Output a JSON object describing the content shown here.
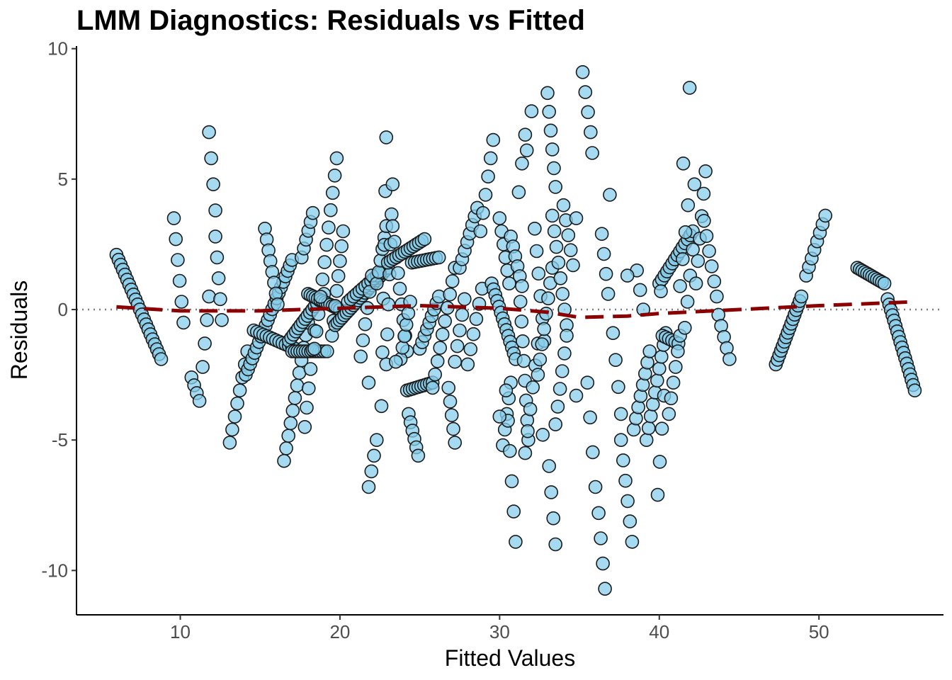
{
  "chart_data": {
    "type": "scatter",
    "title": "LMM Diagnostics: Residuals vs Fitted",
    "xlabel": "Fitted Values",
    "ylabel": "Residuals",
    "xlim": [
      3.5,
      57.8
    ],
    "ylim": [
      -11.7,
      10.1
    ],
    "xticks": [
      10,
      20,
      30,
      40,
      50
    ],
    "yticks": [
      -10,
      -5,
      0,
      5,
      10
    ],
    "xtick_labels": [
      "10",
      "20",
      "30",
      "40",
      "50"
    ],
    "ytick_labels": [
      "-10",
      "-5",
      "0",
      "5",
      "10"
    ],
    "grid": false,
    "reference_line": {
      "y": 0,
      "style": "dotted",
      "color": "#808080"
    },
    "point_style": {
      "fill": "#87CEEB",
      "stroke": "#1a1a1a",
      "opacity": 0.75
    },
    "smooth_line": {
      "style": "dashed",
      "color": "#8B0000",
      "x": [
        6,
        10,
        15,
        20,
        25,
        30,
        33,
        35,
        38,
        40,
        45,
        50,
        56
      ],
      "y": [
        0.1,
        -0.05,
        -0.05,
        0.05,
        0.15,
        0.05,
        -0.1,
        -0.3,
        -0.25,
        -0.15,
        0.0,
        0.15,
        0.3
      ]
    },
    "segments": [
      {
        "x0": 6.0,
        "y0": 2.1,
        "x1": 8.8,
        "y1": -1.9,
        "n": 22
      },
      {
        "x0": 9.6,
        "y0": 3.5,
        "x1": 10.2,
        "y1": -0.5,
        "n": 6
      },
      {
        "x0": 10.7,
        "y0": -2.6,
        "x1": 11.2,
        "y1": -3.5,
        "n": 4
      },
      {
        "x0": 11.4,
        "y0": -2.2,
        "x1": 11.8,
        "y1": 0.5,
        "n": 4
      },
      {
        "x0": 11.8,
        "y0": 6.8,
        "x1": 12.2,
        "y1": 3.8,
        "n": 4
      },
      {
        "x0": 12.2,
        "y0": 2.8,
        "x1": 12.6,
        "y1": -0.4,
        "n": 5
      },
      {
        "x0": 13.1,
        "y0": -5.1,
        "x1": 14.2,
        "y1": -1.6,
        "n": 8
      },
      {
        "x0": 14.1,
        "y0": -2.5,
        "x1": 17.0,
        "y1": 1.9,
        "n": 22
      },
      {
        "x0": 15.3,
        "y0": 3.1,
        "x1": 16.1,
        "y1": 0.2,
        "n": 8
      },
      {
        "x0": 14.6,
        "y0": -0.8,
        "x1": 17.2,
        "y1": -1.5,
        "n": 14
      },
      {
        "x0": 16.5,
        "y0": -5.8,
        "x1": 18.0,
        "y1": -0.5,
        "n": 12
      },
      {
        "x0": 16.8,
        "y0": -1.2,
        "x1": 19.0,
        "y1": 0.6,
        "n": 16
      },
      {
        "x0": 17.0,
        "y0": -1.6,
        "x1": 19.2,
        "y1": -1.6,
        "n": 14
      },
      {
        "x0": 17.6,
        "y0": 2.0,
        "x1": 18.3,
        "y1": 3.7,
        "n": 6
      },
      {
        "x0": 17.8,
        "y0": -4.5,
        "x1": 18.4,
        "y1": -0.8,
        "n": 6
      },
      {
        "x0": 18.0,
        "y0": 0.6,
        "x1": 20.0,
        "y1": 0.0,
        "n": 14
      },
      {
        "x0": 18.4,
        "y0": -1.5,
        "x1": 19.8,
        "y1": 5.8,
        "n": 12
      },
      {
        "x0": 19.5,
        "y0": -1.0,
        "x1": 20.2,
        "y1": 3.0,
        "n": 8
      },
      {
        "x0": 19.7,
        "y0": -0.6,
        "x1": 23.0,
        "y1": 1.6,
        "n": 24
      },
      {
        "x0": 20.5,
        "y0": 0.3,
        "x1": 22.5,
        "y1": 1.4,
        "n": 12
      },
      {
        "x0": 21.3,
        "y0": -1.8,
        "x1": 22.0,
        "y1": 1.3,
        "n": 6
      },
      {
        "x0": 21.8,
        "y0": -6.8,
        "x1": 22.3,
        "y1": -5.0,
        "n": 4
      },
      {
        "x0": 22.3,
        "y0": 1.0,
        "x1": 22.9,
        "y1": 3.2,
        "n": 6
      },
      {
        "x0": 22.6,
        "y0": -3.7,
        "x1": 22.9,
        "y1": 6.6,
        "n": 6
      },
      {
        "x0": 22.9,
        "y0": -2.1,
        "x1": 23.3,
        "y1": 4.8,
        "n": 7
      },
      {
        "x0": 23.3,
        "y0": 3.2,
        "x1": 24.2,
        "y1": -1.6,
        "n": 9
      },
      {
        "x0": 23.0,
        "y0": 1.8,
        "x1": 25.3,
        "y1": 2.7,
        "n": 14
      },
      {
        "x0": 24.2,
        "y0": -3.1,
        "x1": 25.8,
        "y1": -2.8,
        "n": 10
      },
      {
        "x0": 24.3,
        "y0": -4.0,
        "x1": 24.9,
        "y1": -5.6,
        "n": 6
      },
      {
        "x0": 24.5,
        "y0": 1.8,
        "x1": 26.2,
        "y1": 2.0,
        "n": 10
      },
      {
        "x0": 23.8,
        "y0": -1.9,
        "x1": 24.4,
        "y1": 0.3,
        "n": 6
      },
      {
        "x0": 25.0,
        "y0": -1.5,
        "x1": 26.2,
        "y1": 0.5,
        "n": 9
      },
      {
        "x0": 25.8,
        "y0": -3.0,
        "x1": 27.2,
        "y1": 1.6,
        "n": 10
      },
      {
        "x0": 26.8,
        "y0": -3.0,
        "x1": 27.2,
        "y1": -5.1,
        "n": 5
      },
      {
        "x0": 27.2,
        "y0": -2.0,
        "x1": 27.8,
        "y1": 0.4,
        "n": 5
      },
      {
        "x0": 27.5,
        "y0": 1.6,
        "x1": 28.6,
        "y1": 3.9,
        "n": 8
      },
      {
        "x0": 28.0,
        "y0": -2.1,
        "x1": 28.9,
        "y1": 0.8,
        "n": 6
      },
      {
        "x0": 28.8,
        "y0": 3.0,
        "x1": 29.6,
        "y1": 6.5,
        "n": 6
      },
      {
        "x0": 29.5,
        "y0": 1.0,
        "x1": 31.0,
        "y1": -1.9,
        "n": 14
      },
      {
        "x0": 30.0,
        "y0": 3.5,
        "x1": 30.6,
        "y1": 1.0,
        "n": 6
      },
      {
        "x0": 30.2,
        "y0": -5.2,
        "x1": 30.7,
        "y1": -2.8,
        "n": 5
      },
      {
        "x0": 30.4,
        "y0": -3.1,
        "x1": 31.0,
        "y1": -8.9,
        "n": 6
      },
      {
        "x0": 30.7,
        "y0": 2.8,
        "x1": 31.4,
        "y1": 0.9,
        "n": 6
      },
      {
        "x0": 31.2,
        "y0": 4.5,
        "x1": 31.6,
        "y1": 6.7,
        "n": 3
      },
      {
        "x0": 31.3,
        "y0": 0.3,
        "x1": 31.8,
        "y1": -5.0,
        "n": 8
      },
      {
        "x0": 31.7,
        "y0": 6.1,
        "x1": 32.0,
        "y1": 7.6,
        "n": 2
      },
      {
        "x0": 31.6,
        "y0": -5.5,
        "x1": 32.4,
        "y1": -1.3,
        "n": 6
      },
      {
        "x0": 32.2,
        "y0": 3.1,
        "x1": 32.8,
        "y1": -1.2,
        "n": 6
      },
      {
        "x0": 32.4,
        "y0": -2.5,
        "x1": 33.3,
        "y1": 1.6,
        "n": 8
      },
      {
        "x0": 33.0,
        "y0": 8.3,
        "x1": 33.5,
        "y1": 4.7,
        "n": 6
      },
      {
        "x0": 33.1,
        "y0": -6.0,
        "x1": 33.5,
        "y1": -9.0,
        "n": 4
      },
      {
        "x0": 33.3,
        "y0": 3.6,
        "x1": 34.2,
        "y1": -0.6,
        "n": 8
      },
      {
        "x0": 33.5,
        "y0": -4.4,
        "x1": 34.2,
        "y1": -1.0,
        "n": 6
      },
      {
        "x0": 34.0,
        "y0": 4.0,
        "x1": 34.6,
        "y1": 1.7,
        "n": 5
      },
      {
        "x0": 35.2,
        "y0": 9.1,
        "x1": 35.7,
        "y1": 6.8,
        "n": 4
      },
      {
        "x0": 35.5,
        "y0": -2.8,
        "x1": 36.0,
        "y1": -6.8,
        "n": 4
      },
      {
        "x0": 36.2,
        "y0": -7.8,
        "x1": 36.6,
        "y1": -10.7,
        "n": 4
      },
      {
        "x0": 36.4,
        "y0": 2.9,
        "x1": 36.8,
        "y1": 0.6,
        "n": 4
      },
      {
        "x0": 37.1,
        "y0": -0.9,
        "x1": 37.6,
        "y1": -4.0,
        "n": 4
      },
      {
        "x0": 37.6,
        "y0": -5.0,
        "x1": 38.3,
        "y1": -8.9,
        "n": 6
      },
      {
        "x0": 38.4,
        "y0": -4.6,
        "x1": 39.4,
        "y1": -1.6,
        "n": 8
      },
      {
        "x0": 38.6,
        "y0": 1.5,
        "x1": 39.0,
        "y1": 0.0,
        "n": 3
      },
      {
        "x0": 39.2,
        "y0": -5.0,
        "x1": 40.4,
        "y1": -0.9,
        "n": 10
      },
      {
        "x0": 39.9,
        "y0": -7.1,
        "x1": 40.3,
        "y1": -3.3,
        "n": 4
      },
      {
        "x0": 40.0,
        "y0": 1.0,
        "x1": 42.1,
        "y1": 3.0,
        "n": 14
      },
      {
        "x0": 40.2,
        "y0": -1.0,
        "x1": 41.2,
        "y1": -1.3,
        "n": 6
      },
      {
        "x0": 40.6,
        "y0": -4.0,
        "x1": 41.3,
        "y1": -1.0,
        "n": 6
      },
      {
        "x0": 41.3,
        "y0": 0.9,
        "x1": 41.8,
        "y1": 4.0,
        "n": 4
      },
      {
        "x0": 41.6,
        "y0": -0.7,
        "x1": 42.1,
        "y1": 2.3,
        "n": 4
      },
      {
        "x0": 42.3,
        "y0": 1.0,
        "x1": 42.9,
        "y1": 5.3,
        "n": 6
      },
      {
        "x0": 42.8,
        "y0": 3.4,
        "x1": 43.6,
        "y1": 0.5,
        "n": 6
      },
      {
        "x0": 43.7,
        "y0": -0.2,
        "x1": 44.4,
        "y1": -1.9,
        "n": 5
      },
      {
        "x0": 47.3,
        "y0": -2.1,
        "x1": 48.9,
        "y1": 0.5,
        "n": 16
      },
      {
        "x0": 49.2,
        "y0": 1.3,
        "x1": 50.4,
        "y1": 3.6,
        "n": 8
      },
      {
        "x0": 52.4,
        "y0": 1.6,
        "x1": 54.1,
        "y1": 1.0,
        "n": 12
      },
      {
        "x0": 54.3,
        "y0": 0.4,
        "x1": 56.0,
        "y1": -3.1,
        "n": 18
      }
    ],
    "points": [
      {
        "x": 41.9,
        "y": 8.5
      },
      {
        "x": 35.8,
        "y": 6.0
      },
      {
        "x": 36.9,
        "y": 4.4
      },
      {
        "x": 34.8,
        "y": 3.5
      },
      {
        "x": 21.8,
        "y": -2.8
      },
      {
        "x": 23.5,
        "y": -2.0
      },
      {
        "x": 30.0,
        "y": -4.1
      },
      {
        "x": 32.7,
        "y": -4.8
      },
      {
        "x": 34.8,
        "y": -3.3
      },
      {
        "x": 38.0,
        "y": 1.3
      },
      {
        "x": 40.1,
        "y": 0.7
      },
      {
        "x": 42.2,
        "y": 4.8
      },
      {
        "x": 41.5,
        "y": 5.6
      }
    ]
  }
}
